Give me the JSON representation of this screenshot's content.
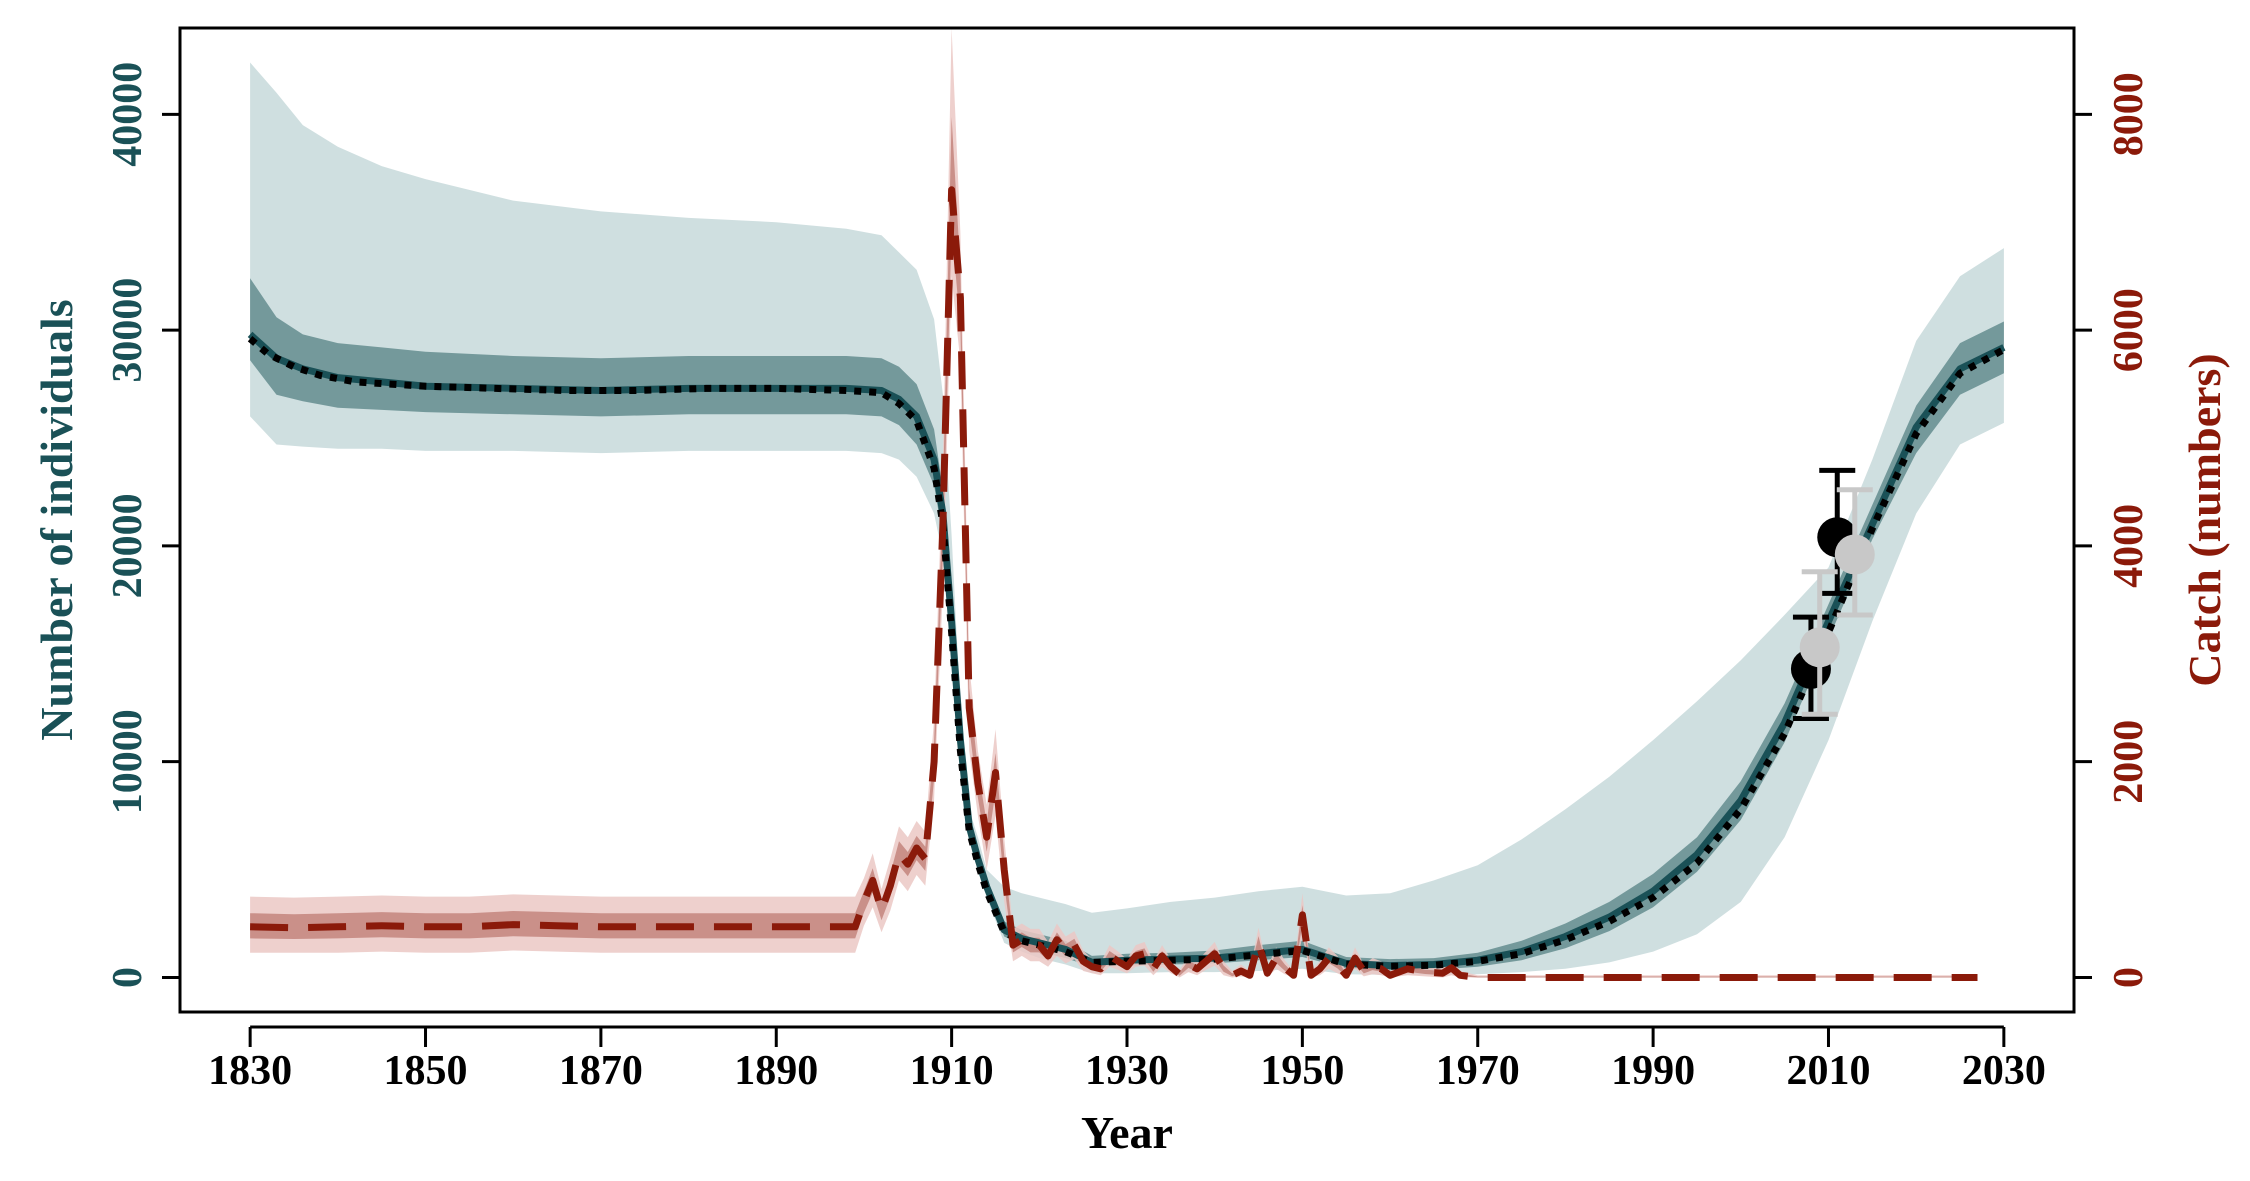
{
  "chart_data": {
    "type": "line",
    "xlabel": "Year",
    "ylabel_left": "Number of individuals",
    "ylabel_right": "Catch (numbers)",
    "xlim": [
      1822,
      2038
    ],
    "ylim_left": [
      -1600,
      44000
    ],
    "ylim_right": [
      -320,
      8800
    ],
    "x_ticks": [
      1830,
      1850,
      1870,
      1890,
      1910,
      1930,
      1950,
      1970,
      1990,
      2010,
      2030
    ],
    "y_left_ticks": [
      0,
      10000,
      20000,
      30000,
      40000
    ],
    "y_right_ticks": [
      0,
      2000,
      4000,
      6000,
      8000
    ],
    "colors": {
      "population_line": "#1a5157",
      "population_band_outer": "#cfdfe0",
      "population_band_inner": "#74999b",
      "catch_line": "#8b1a0a",
      "catch_band_outer": "#ebc8c4",
      "catch_band_inner": "#c08078",
      "survey_black": "#000000",
      "survey_grey": "#c8c8c8",
      "left_axis_color": "#1a5157",
      "right_axis_color": "#8b1a0a"
    },
    "population": {
      "x": [
        1830,
        1833,
        1836,
        1840,
        1845,
        1850,
        1860,
        1870,
        1880,
        1890,
        1898,
        1902,
        1904,
        1906,
        1908,
        1909,
        1910,
        1911,
        1912,
        1913,
        1914,
        1916,
        1918,
        1920,
        1923,
        1926,
        1930,
        1935,
        1940,
        1945,
        1950,
        1955,
        1960,
        1965,
        1970,
        1975,
        1980,
        1985,
        1990,
        1995,
        2000,
        2005,
        2010,
        2015,
        2020,
        2025,
        2030
      ],
      "median": [
        29800,
        28700,
        28200,
        27800,
        27600,
        27400,
        27300,
        27200,
        27300,
        27300,
        27300,
        27200,
        26800,
        26000,
        24000,
        21500,
        16500,
        11000,
        7000,
        5500,
        4200,
        2200,
        1800,
        1600,
        1300,
        700,
        800,
        850,
        900,
        1100,
        1300,
        650,
        550,
        600,
        800,
        1200,
        1900,
        2800,
        4000,
        5700,
        8200,
        11800,
        16500,
        21000,
        25500,
        28200,
        29200
      ],
      "outer_lower": [
        26000,
        24700,
        24600,
        24500,
        24500,
        24400,
        24400,
        24300,
        24400,
        24400,
        24400,
        24300,
        24000,
        23200,
        21500,
        19500,
        15300,
        10500,
        6500,
        5000,
        3700,
        1600,
        1200,
        900,
        600,
        200,
        200,
        250,
        250,
        300,
        400,
        150,
        120,
        120,
        150,
        250,
        400,
        700,
        1200,
        2000,
        3500,
        6500,
        11000,
        16500,
        21500,
        24700,
        25700
      ],
      "outer_upper": [
        42400,
        41000,
        39500,
        38500,
        37600,
        37000,
        36000,
        35500,
        35200,
        35000,
        34700,
        34400,
        33600,
        32800,
        30500,
        27000,
        20500,
        12500,
        7800,
        6500,
        5000,
        4200,
        3900,
        3700,
        3400,
        3000,
        3200,
        3500,
        3700,
        4000,
        4200,
        3800,
        3900,
        4500,
        5200,
        6400,
        7800,
        9300,
        11000,
        12800,
        14700,
        16800,
        19000,
        24000,
        29500,
        32500,
        33800
      ],
      "inner_lower": [
        28600,
        27000,
        26700,
        26400,
        26300,
        26200,
        26100,
        26000,
        26100,
        26100,
        26100,
        26000,
        25600,
        24700,
        22800,
        20400,
        15800,
        10700,
        6700,
        5200,
        4000,
        1900,
        1500,
        1200,
        900,
        500,
        550,
        600,
        650,
        800,
        950,
        420,
        330,
        350,
        500,
        800,
        1350,
        2150,
        3250,
        4900,
        7300,
        10900,
        15700,
        20300,
        24300,
        27000,
        28000
      ],
      "inner_upper": [
        32400,
        30600,
        29800,
        29400,
        29200,
        29000,
        28800,
        28700,
        28800,
        28800,
        28800,
        28700,
        28300,
        27500,
        25400,
        22600,
        17200,
        11300,
        7300,
        5800,
        4500,
        2600,
        2200,
        2000,
        1700,
        1000,
        1100,
        1150,
        1250,
        1500,
        1700,
        950,
        850,
        900,
        1150,
        1700,
        2500,
        3500,
        4800,
        6500,
        9100,
        12700,
        17300,
        21900,
        26500,
        29400,
        30400
      ],
      "dotted_fit_x": [
        1830,
        1832,
        1835,
        1838,
        1842,
        1846,
        1850,
        1858,
        1866,
        1874,
        1882,
        1890,
        1898,
        1902,
        1904,
        1906,
        1908,
        1909,
        1910,
        1911,
        1912,
        1913,
        1914,
        1916,
        1918,
        1920,
        1923,
        1926,
        1930,
        1935,
        1940,
        1945,
        1950,
        1955,
        1960,
        1965,
        1970,
        1975,
        1980,
        1985,
        1990,
        1995,
        2000,
        2005,
        2010,
        2015,
        2020,
        2025,
        2030
      ],
      "dotted_fit_y": [
        29600,
        28900,
        28300,
        27900,
        27600,
        27500,
        27400,
        27300,
        27200,
        27200,
        27300,
        27300,
        27200,
        27100,
        26600,
        25800,
        23600,
        21000,
        16000,
        10500,
        6800,
        5300,
        4000,
        2100,
        1700,
        1500,
        1200,
        700,
        750,
        800,
        850,
        1050,
        1250,
        620,
        520,
        570,
        750,
        1100,
        1750,
        2600,
        3700,
        5300,
        7800,
        11300,
        16000,
        20800,
        25200,
        28000,
        29100
      ]
    },
    "catch": {
      "x": [
        1830,
        1835,
        1840,
        1845,
        1850,
        1855,
        1860,
        1865,
        1870,
        1875,
        1880,
        1885,
        1890,
        1895,
        1899,
        1900,
        1901,
        1902,
        1903,
        1904,
        1905,
        1906,
        1907,
        1908,
        1909,
        1910,
        1911,
        1912,
        1913,
        1914,
        1915,
        1916,
        1917,
        1918,
        1919,
        1920,
        1921,
        1922,
        1923,
        1924,
        1925,
        1926,
        1927,
        1928,
        1929,
        1930,
        1931,
        1932,
        1933,
        1934,
        1935,
        1936,
        1937,
        1938,
        1939,
        1940,
        1941,
        1942,
        1943,
        1944,
        1945,
        1946,
        1947,
        1948,
        1949,
        1950,
        1951,
        1952,
        1953,
        1954,
        1955,
        1956,
        1957,
        1958,
        1959,
        1960,
        1962,
        1964,
        1966,
        1967,
        1968,
        1970,
        1980,
        2000,
        2027
      ],
      "median": [
        470,
        460,
        470,
        480,
        470,
        470,
        490,
        480,
        470,
        470,
        470,
        470,
        470,
        470,
        470,
        700,
        900,
        620,
        850,
        1150,
        1050,
        1200,
        1100,
        2000,
        4200,
        7300,
        6300,
        2500,
        1800,
        1300,
        1900,
        1000,
        300,
        350,
        300,
        300,
        200,
        350,
        250,
        300,
        150,
        100,
        80,
        200,
        150,
        100,
        200,
        220,
        80,
        200,
        100,
        30,
        120,
        80,
        150,
        220,
        80,
        20,
        60,
        20,
        320,
        40,
        180,
        90,
        20,
        580,
        20,
        80,
        180,
        120,
        20,
        180,
        60,
        100,
        80,
        20,
        80,
        50,
        40,
        90,
        20,
        0,
        0,
        0,
        0
      ],
      "outer_lower": [
        230,
        230,
        230,
        240,
        230,
        230,
        250,
        240,
        230,
        230,
        230,
        230,
        230,
        230,
        230,
        480,
        650,
        420,
        620,
        900,
        800,
        950,
        850,
        1650,
        3600,
        6500,
        5700,
        2100,
        1500,
        1000,
        1500,
        700,
        150,
        200,
        150,
        150,
        100,
        200,
        130,
        170,
        60,
        40,
        20,
        100,
        70,
        40,
        100,
        110,
        20,
        100,
        40,
        0,
        50,
        20,
        70,
        110,
        20,
        0,
        10,
        0,
        180,
        0,
        80,
        30,
        0,
        380,
        0,
        20,
        80,
        40,
        0,
        80,
        10,
        30,
        20,
        0,
        20,
        10,
        0,
        20,
        0,
        0,
        0,
        0,
        0
      ],
      "outer_upper": [
        750,
        740,
        750,
        760,
        750,
        750,
        770,
        760,
        750,
        750,
        750,
        750,
        750,
        750,
        750,
        920,
        1150,
        820,
        1100,
        1400,
        1300,
        1450,
        1350,
        2400,
        4800,
        8800,
        6900,
        2900,
        2100,
        1600,
        2300,
        1300,
        450,
        500,
        450,
        450,
        330,
        500,
        380,
        430,
        250,
        170,
        140,
        300,
        240,
        170,
        300,
        330,
        150,
        300,
        170,
        70,
        200,
        150,
        240,
        330,
        150,
        60,
        120,
        60,
        460,
        90,
        280,
        160,
        60,
        780,
        60,
        150,
        280,
        200,
        60,
        280,
        120,
        180,
        150,
        60,
        150,
        100,
        90,
        170,
        60,
        20,
        20,
        20,
        20
      ]
    },
    "survey_black": {
      "x": [
        2008,
        2011
      ],
      "y": [
        14300,
        20400
      ],
      "lower": [
        12000,
        17800
      ],
      "upper": [
        16700,
        23500
      ]
    },
    "survey_grey": {
      "x": [
        2009,
        2013
      ],
      "y": [
        15300,
        19600
      ],
      "lower": [
        12200,
        16800
      ],
      "upper": [
        18800,
        22600
      ]
    }
  }
}
